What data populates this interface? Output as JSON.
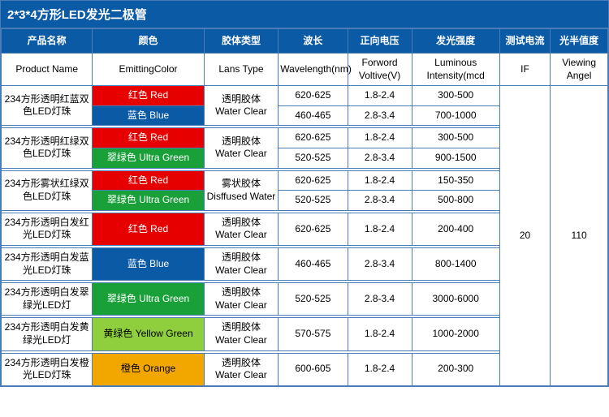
{
  "title": "2*3*4方形LED发光二极管",
  "header_cn": [
    "产品名称",
    "颜色",
    "胶体类型",
    "波长",
    "正向电压",
    "发光强度",
    "测试电流",
    "光半值度"
  ],
  "header_en": [
    "Product Name",
    "EmittingColor",
    "Lans Type",
    "Wavelength(nm)",
    "Forword Voltive(V)",
    "Luminous Intensity(mcd",
    "IF",
    "Viewing Angel"
  ],
  "if_value": "20",
  "angle_value": "110",
  "colors": {
    "red": {
      "bg": "#e60000",
      "fg": "#ffffff",
      "label": "红色 Red"
    },
    "blue": {
      "bg": "#0b5aa6",
      "fg": "#ffffff",
      "label": "蓝色 Blue"
    },
    "ugreen": {
      "bg": "#1aa038",
      "fg": "#ffffff",
      "label": "翠绿色 Ultra Green"
    },
    "ygreen": {
      "bg": "#8fce3c",
      "fg": "#000000",
      "label": "黄绿色 Yellow Green"
    },
    "orange": {
      "bg": "#f2a600",
      "fg": "#000000",
      "label": "橙色 Orange"
    }
  },
  "lens": {
    "clear": {
      "l1": "透明胶体",
      "l2": "Water Clear"
    },
    "diff": {
      "l1": "雾状胶体",
      "l2": "Disffused Water"
    }
  },
  "groups": [
    {
      "product": "234方形透明红蓝双色LED灯珠",
      "lens": "clear",
      "rows": [
        {
          "color": "red",
          "wl": "620-625",
          "vf": "1.8-2.4",
          "iv": "300-500"
        },
        {
          "color": "blue",
          "wl": "460-465",
          "vf": "2.8-3.4",
          "iv": "700-1000"
        }
      ]
    },
    {
      "product": "234方形透明红绿双色LED灯珠",
      "lens": "clear",
      "rows": [
        {
          "color": "red",
          "wl": "620-625",
          "vf": "1.8-2.4",
          "iv": "300-500"
        },
        {
          "color": "ugreen",
          "wl": "520-525",
          "vf": "2.8-3.4",
          "iv": "900-1500"
        }
      ]
    },
    {
      "product": "234方形雾状红绿双色LED灯珠",
      "lens": "diff",
      "rows": [
        {
          "color": "red",
          "wl": "620-625",
          "vf": "1.8-2.4",
          "iv": "150-350"
        },
        {
          "color": "ugreen",
          "wl": "520-525",
          "vf": "2.8-3.4",
          "iv": "500-800"
        }
      ]
    },
    {
      "product": "234方形透明白发红光LED灯珠",
      "lens": "clear",
      "rows": [
        {
          "color": "red",
          "wl": "620-625",
          "vf": "1.8-2.4",
          "iv": "200-400"
        }
      ]
    },
    {
      "product": "234方形透明白发蓝光LED灯珠",
      "lens": "clear",
      "rows": [
        {
          "color": "blue",
          "wl": "460-465",
          "vf": "2.8-3.4",
          "iv": "800-1400"
        }
      ]
    },
    {
      "product": "234方形透明白发翠绿光LED灯",
      "lens": "clear",
      "rows": [
        {
          "color": "ugreen",
          "wl": "520-525",
          "vf": "2.8-3.4",
          "iv": "3000-6000"
        }
      ]
    },
    {
      "product": "234方形透明白发黄绿光LED灯",
      "lens": "clear",
      "rows": [
        {
          "color": "ygreen",
          "wl": "570-575",
          "vf": "1.8-2.4",
          "iv": "1000-2000"
        }
      ]
    },
    {
      "product": "234方形透明白发橙光LED灯珠",
      "lens": "clear",
      "rows": [
        {
          "color": "orange",
          "wl": "600-605",
          "vf": "1.8-2.4",
          "iv": "200-300"
        }
      ]
    }
  ]
}
